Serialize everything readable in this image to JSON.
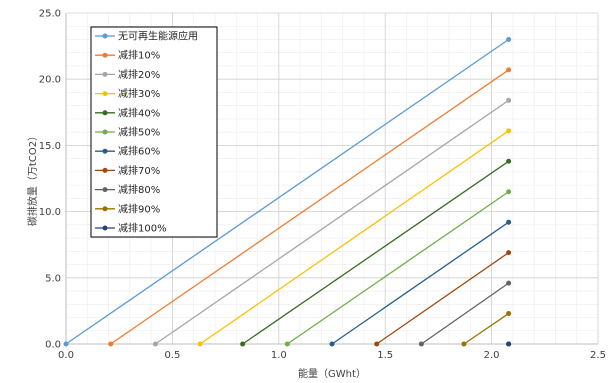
{
  "chart_data": {
    "type": "line",
    "xlabel": "能量（GWht）",
    "ylabel": "碳排放量（万tCO2）",
    "xlim": [
      0,
      2.5
    ],
    "ylim": [
      0,
      25
    ],
    "x_ticks": [
      "0.0",
      "0.5",
      "1.0",
      "1.5",
      "2.0",
      "2.5"
    ],
    "y_ticks": [
      "0.0",
      "5.0",
      "10.0",
      "15.0",
      "20.0",
      "25.0"
    ],
    "x_tick_values": [
      0,
      0.5,
      1.0,
      1.5,
      2.0,
      2.5
    ],
    "y_tick_values": [
      0,
      5,
      10,
      15,
      20,
      25
    ],
    "grid": true,
    "legend_position": "top-left",
    "series": [
      {
        "name": "无可再生能源应用",
        "color": "#5b9bd5",
        "x": [
          0,
          2.08
        ],
        "y": [
          0,
          23.0
        ]
      },
      {
        "name": "减排10%",
        "color": "#ed7d31",
        "x": [
          0.21,
          2.08
        ],
        "y": [
          0,
          20.7
        ]
      },
      {
        "name": "减排20%",
        "color": "#a5a5a5",
        "x": [
          0.42,
          2.08
        ],
        "y": [
          0,
          18.4
        ]
      },
      {
        "name": "减排30%",
        "color": "#ffc000",
        "x": [
          0.63,
          2.08
        ],
        "y": [
          0,
          16.1
        ]
      },
      {
        "name": "减排40%",
        "color": "#3a6b24",
        "x": [
          0.83,
          2.08
        ],
        "y": [
          0,
          13.8
        ]
      },
      {
        "name": "减排50%",
        "color": "#70ad47",
        "x": [
          1.04,
          2.08
        ],
        "y": [
          0,
          11.5
        ]
      },
      {
        "name": "减排60%",
        "color": "#255e91",
        "x": [
          1.25,
          2.08
        ],
        "y": [
          0,
          9.2
        ]
      },
      {
        "name": "减排70%",
        "color": "#9e480e",
        "x": [
          1.46,
          2.08
        ],
        "y": [
          0,
          6.9
        ]
      },
      {
        "name": "减排80%",
        "color": "#636363",
        "x": [
          1.67,
          2.08
        ],
        "y": [
          0,
          4.6
        ]
      },
      {
        "name": "减排90%",
        "color": "#997300",
        "x": [
          1.87,
          2.08
        ],
        "y": [
          0,
          2.3
        ]
      },
      {
        "name": "减排100%",
        "color": "#264478",
        "x": [
          2.08,
          2.08
        ],
        "y": [
          0,
          0
        ]
      }
    ]
  }
}
